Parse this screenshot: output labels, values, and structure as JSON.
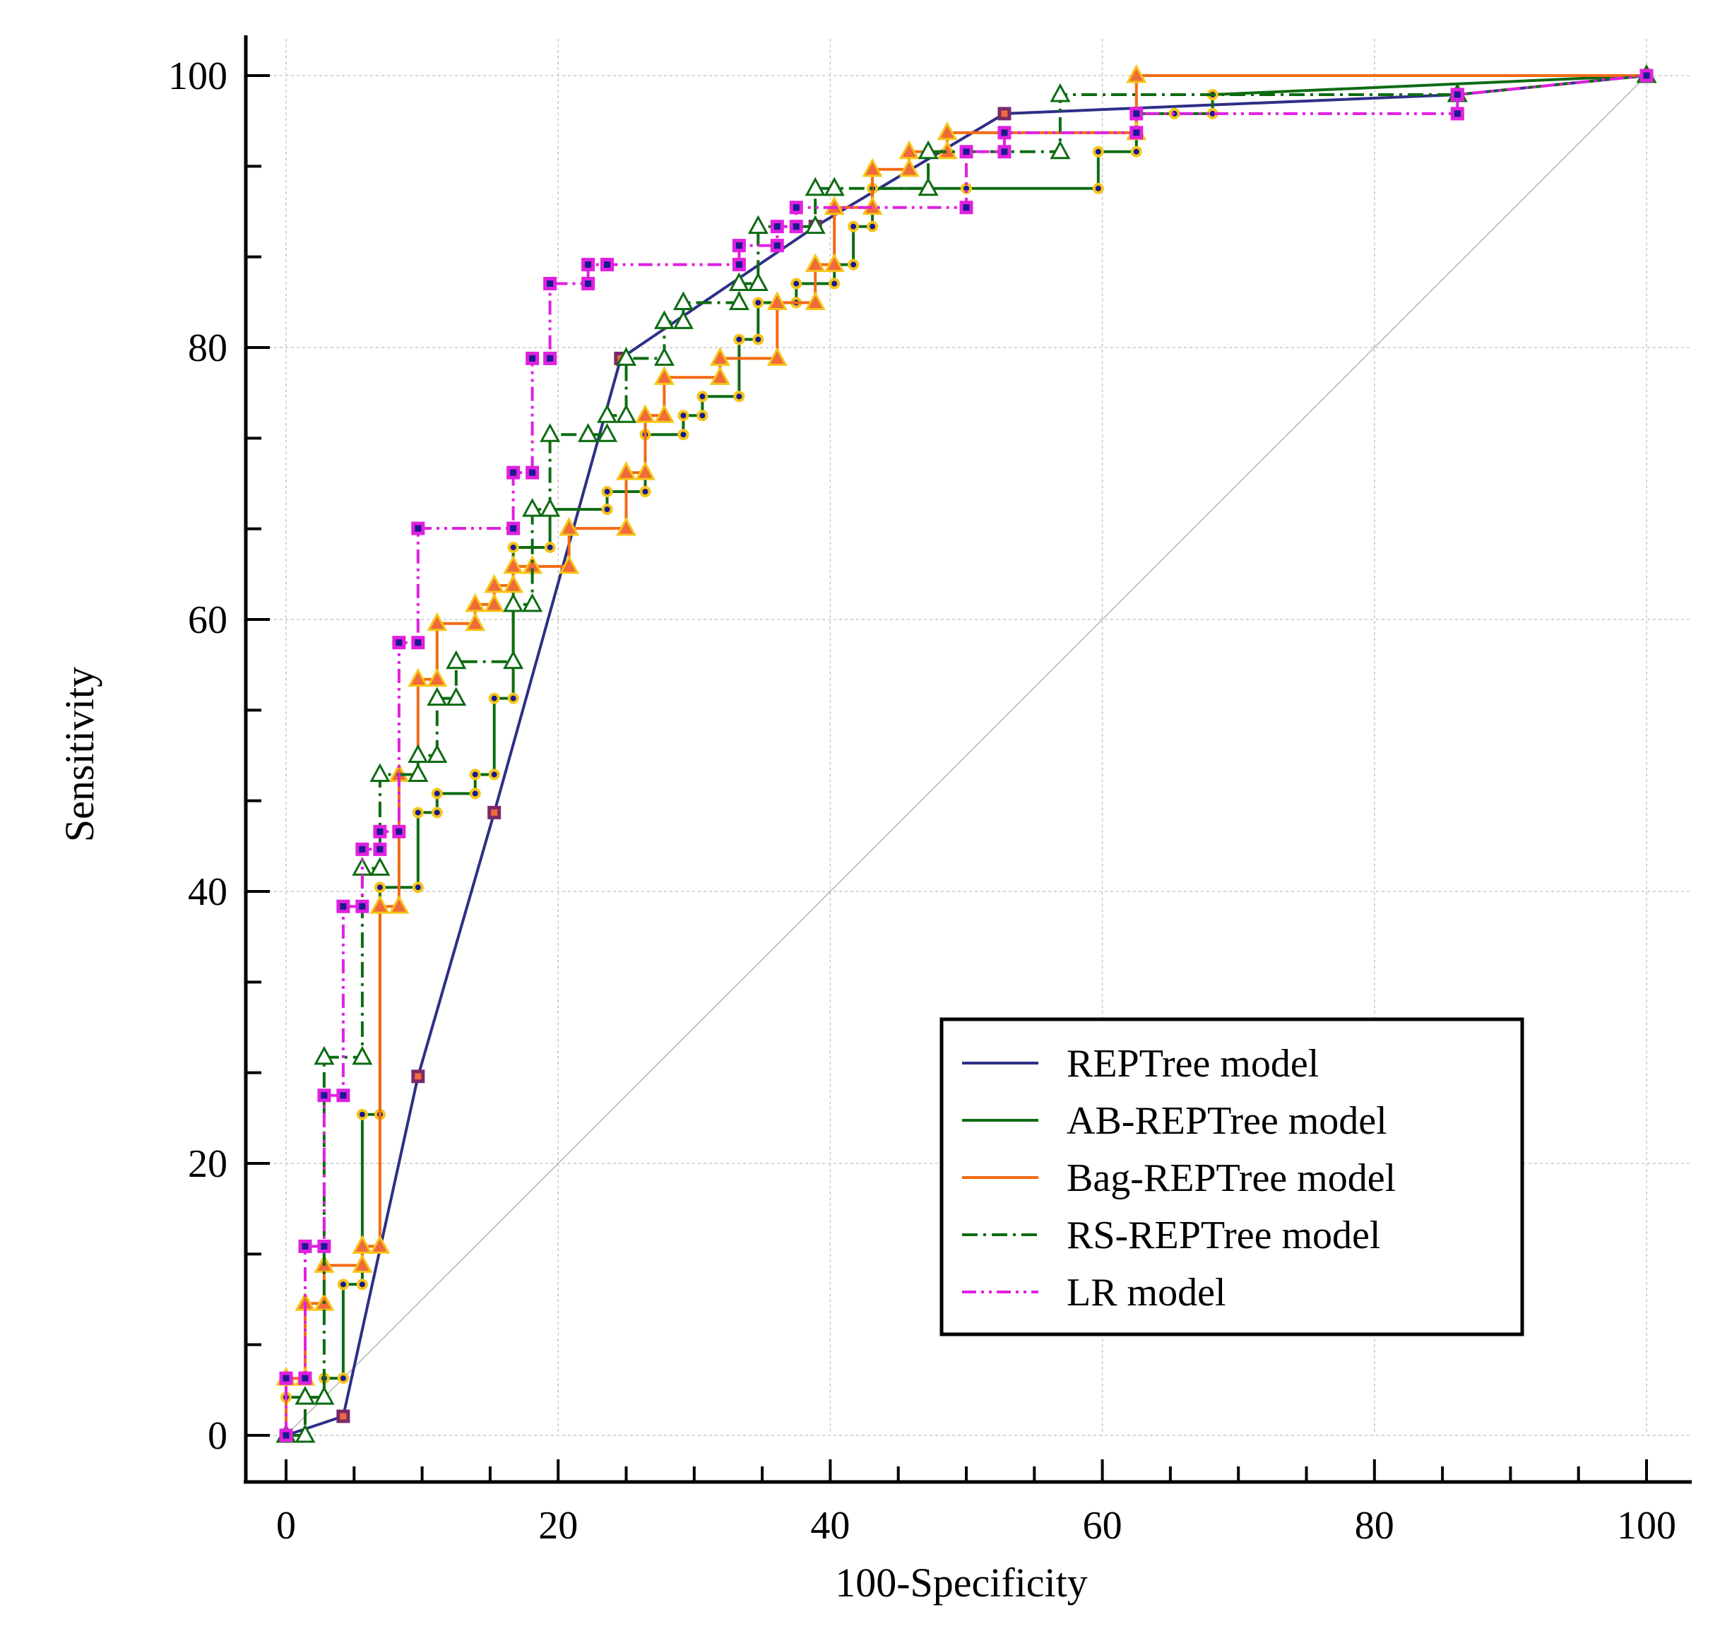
{
  "chart_data": {
    "type": "line",
    "title": "",
    "xlabel": "100-Specificity",
    "ylabel": "Sensitivity",
    "xlim": [
      0,
      100
    ],
    "ylim": [
      0,
      100
    ],
    "xticks": [
      "0",
      "20",
      "40",
      "60",
      "80",
      "100"
    ],
    "yticks": [
      "0",
      "20",
      "40",
      "60",
      "80",
      "100"
    ],
    "grid": true,
    "legend_position": "bottom-right",
    "reference_line": true,
    "series": [
      {
        "name": "REPTree model",
        "color": "#2e2f86",
        "dash": "solid",
        "marker": "square",
        "marker_fill": "#f06a3a",
        "marker_stroke": "#7a2a6a",
        "x": [
          0,
          4.2,
          9.7,
          15.3,
          24.6,
          38.9,
          52.8,
          86.1,
          100
        ],
        "y": [
          0,
          1.4,
          26.4,
          45.8,
          79.2,
          88.9,
          97.2,
          98.6,
          100
        ]
      },
      {
        "name": "AB-REPTree model",
        "color": "#0e6b12",
        "dash": "solid",
        "marker": "circle",
        "marker_fill": "#1a1a8f",
        "marker_stroke": "#f5c518",
        "x": [
          0,
          0,
          2.8,
          2.8,
          4.2,
          4.2,
          5.6,
          5.6,
          6.9,
          6.9,
          9.7,
          9.7,
          11.1,
          11.1,
          13.9,
          13.9,
          15.3,
          15.3,
          16.7,
          16.7,
          19.4,
          19.4,
          23.6,
          23.6,
          26.4,
          26.4,
          29.2,
          29.2,
          30.6,
          30.6,
          33.3,
          33.3,
          34.7,
          34.7,
          37.5,
          37.5,
          40.3,
          40.3,
          41.7,
          41.7,
          43.1,
          43.1,
          50,
          50,
          59.7,
          59.7,
          62.5,
          62.5,
          65.3,
          68.1,
          68.1,
          100
        ],
        "y": [
          0,
          2.8,
          2.8,
          4.2,
          4.2,
          11.1,
          11.1,
          23.6,
          23.6,
          40.3,
          40.3,
          45.8,
          45.8,
          47.2,
          47.2,
          48.6,
          48.6,
          54.2,
          54.2,
          65.3,
          65.3,
          68.1,
          68.1,
          69.4,
          69.4,
          73.6,
          73.6,
          75,
          75,
          76.4,
          76.4,
          80.6,
          80.6,
          83.3,
          83.3,
          84.7,
          84.7,
          86.1,
          86.1,
          88.9,
          88.9,
          91.7,
          91.7,
          91.7,
          91.7,
          94.4,
          94.4,
          97.2,
          97.2,
          97.2,
          98.6,
          100
        ]
      },
      {
        "name": "Bag-REPTree model",
        "color": "#f26b14",
        "dash": "solid",
        "marker": "triangle",
        "marker_fill": "#f06a3a",
        "marker_stroke": "#f5c518",
        "x": [
          0,
          0,
          1.4,
          1.4,
          2.8,
          2.8,
          5.6,
          5.6,
          6.9,
          6.9,
          8.3,
          8.3,
          9.7,
          9.7,
          11.1,
          11.1,
          13.9,
          13.9,
          15.3,
          15.3,
          16.7,
          16.7,
          18.1,
          18.1,
          20.8,
          20.8,
          25,
          25,
          26.4,
          26.4,
          27.8,
          27.8,
          31.9,
          31.9,
          36.1,
          36.1,
          38.9,
          38.9,
          40.3,
          40.3,
          43.1,
          43.1,
          45.8,
          45.8,
          48.6,
          48.6,
          62.5,
          62.5,
          100
        ],
        "y": [
          0,
          4.2,
          4.2,
          9.7,
          9.7,
          12.5,
          12.5,
          13.9,
          13.9,
          38.9,
          38.9,
          48.6,
          48.6,
          55.6,
          55.6,
          59.7,
          59.7,
          61.1,
          61.1,
          62.5,
          62.5,
          63.9,
          63.9,
          63.9,
          63.9,
          66.7,
          66.7,
          70.8,
          70.8,
          75,
          75,
          77.8,
          77.8,
          79.2,
          79.2,
          83.3,
          83.3,
          86.1,
          86.1,
          90.3,
          90.3,
          93.1,
          93.1,
          94.4,
          94.4,
          95.8,
          95.8,
          100,
          100
        ]
      },
      {
        "name": "RS-REPTree model",
        "color": "#0e6b12",
        "dash": "dashdot",
        "marker": "triangle-open",
        "marker_fill": "#ffffff",
        "marker_stroke": "#0e6b12",
        "x": [
          0,
          1.4,
          1.4,
          2.8,
          2.8,
          5.6,
          5.6,
          6.9,
          6.9,
          9.7,
          9.7,
          11.1,
          11.1,
          12.5,
          12.5,
          16.7,
          16.7,
          18.1,
          18.1,
          19.4,
          19.4,
          22.2,
          22.2,
          23.6,
          23.6,
          25,
          25,
          27.8,
          27.8,
          29.2,
          29.2,
          33.3,
          33.3,
          34.7,
          34.7,
          38.9,
          38.9,
          40.3,
          40.3,
          47.2,
          47.2,
          56.9,
          56.9,
          86.1,
          86.1,
          100
        ],
        "y": [
          0,
          0,
          2.8,
          2.8,
          27.8,
          27.8,
          41.7,
          41.7,
          48.6,
          48.6,
          50,
          50,
          54.2,
          54.2,
          56.9,
          56.9,
          61.1,
          61.1,
          68.1,
          68.1,
          73.6,
          73.6,
          73.6,
          73.6,
          75,
          75,
          79.2,
          79.2,
          81.9,
          81.9,
          83.3,
          83.3,
          84.7,
          84.7,
          88.9,
          88.9,
          91.7,
          91.7,
          91.7,
          91.7,
          94.4,
          94.4,
          98.6,
          98.6,
          98.6,
          100
        ]
      },
      {
        "name": "LR model",
        "color": "#e020e0",
        "dash": "dashdotdot",
        "marker": "square",
        "marker_fill": "#1a1a8f",
        "marker_stroke": "#e020e0",
        "x": [
          0,
          0,
          1.4,
          1.4,
          2.8,
          2.8,
          4.2,
          4.2,
          5.6,
          5.6,
          6.9,
          6.9,
          8.3,
          8.3,
          9.7,
          9.7,
          16.7,
          16.7,
          18.1,
          18.1,
          19.4,
          19.4,
          22.2,
          22.2,
          23.6,
          23.6,
          33.3,
          33.3,
          36.1,
          36.1,
          37.5,
          37.5,
          50,
          50,
          52.8,
          52.8,
          62.5,
          62.5,
          86.1,
          86.1,
          100
        ],
        "y": [
          0,
          4.2,
          4.2,
          13.9,
          13.9,
          25,
          25,
          38.9,
          38.9,
          43.1,
          43.1,
          44.4,
          44.4,
          58.3,
          58.3,
          66.7,
          66.7,
          70.8,
          70.8,
          79.2,
          79.2,
          84.7,
          84.7,
          86.1,
          86.1,
          86.1,
          86.1,
          87.5,
          87.5,
          88.9,
          88.9,
          90.3,
          90.3,
          94.4,
          94.4,
          95.8,
          95.8,
          97.2,
          97.2,
          98.6,
          100
        ]
      }
    ]
  }
}
